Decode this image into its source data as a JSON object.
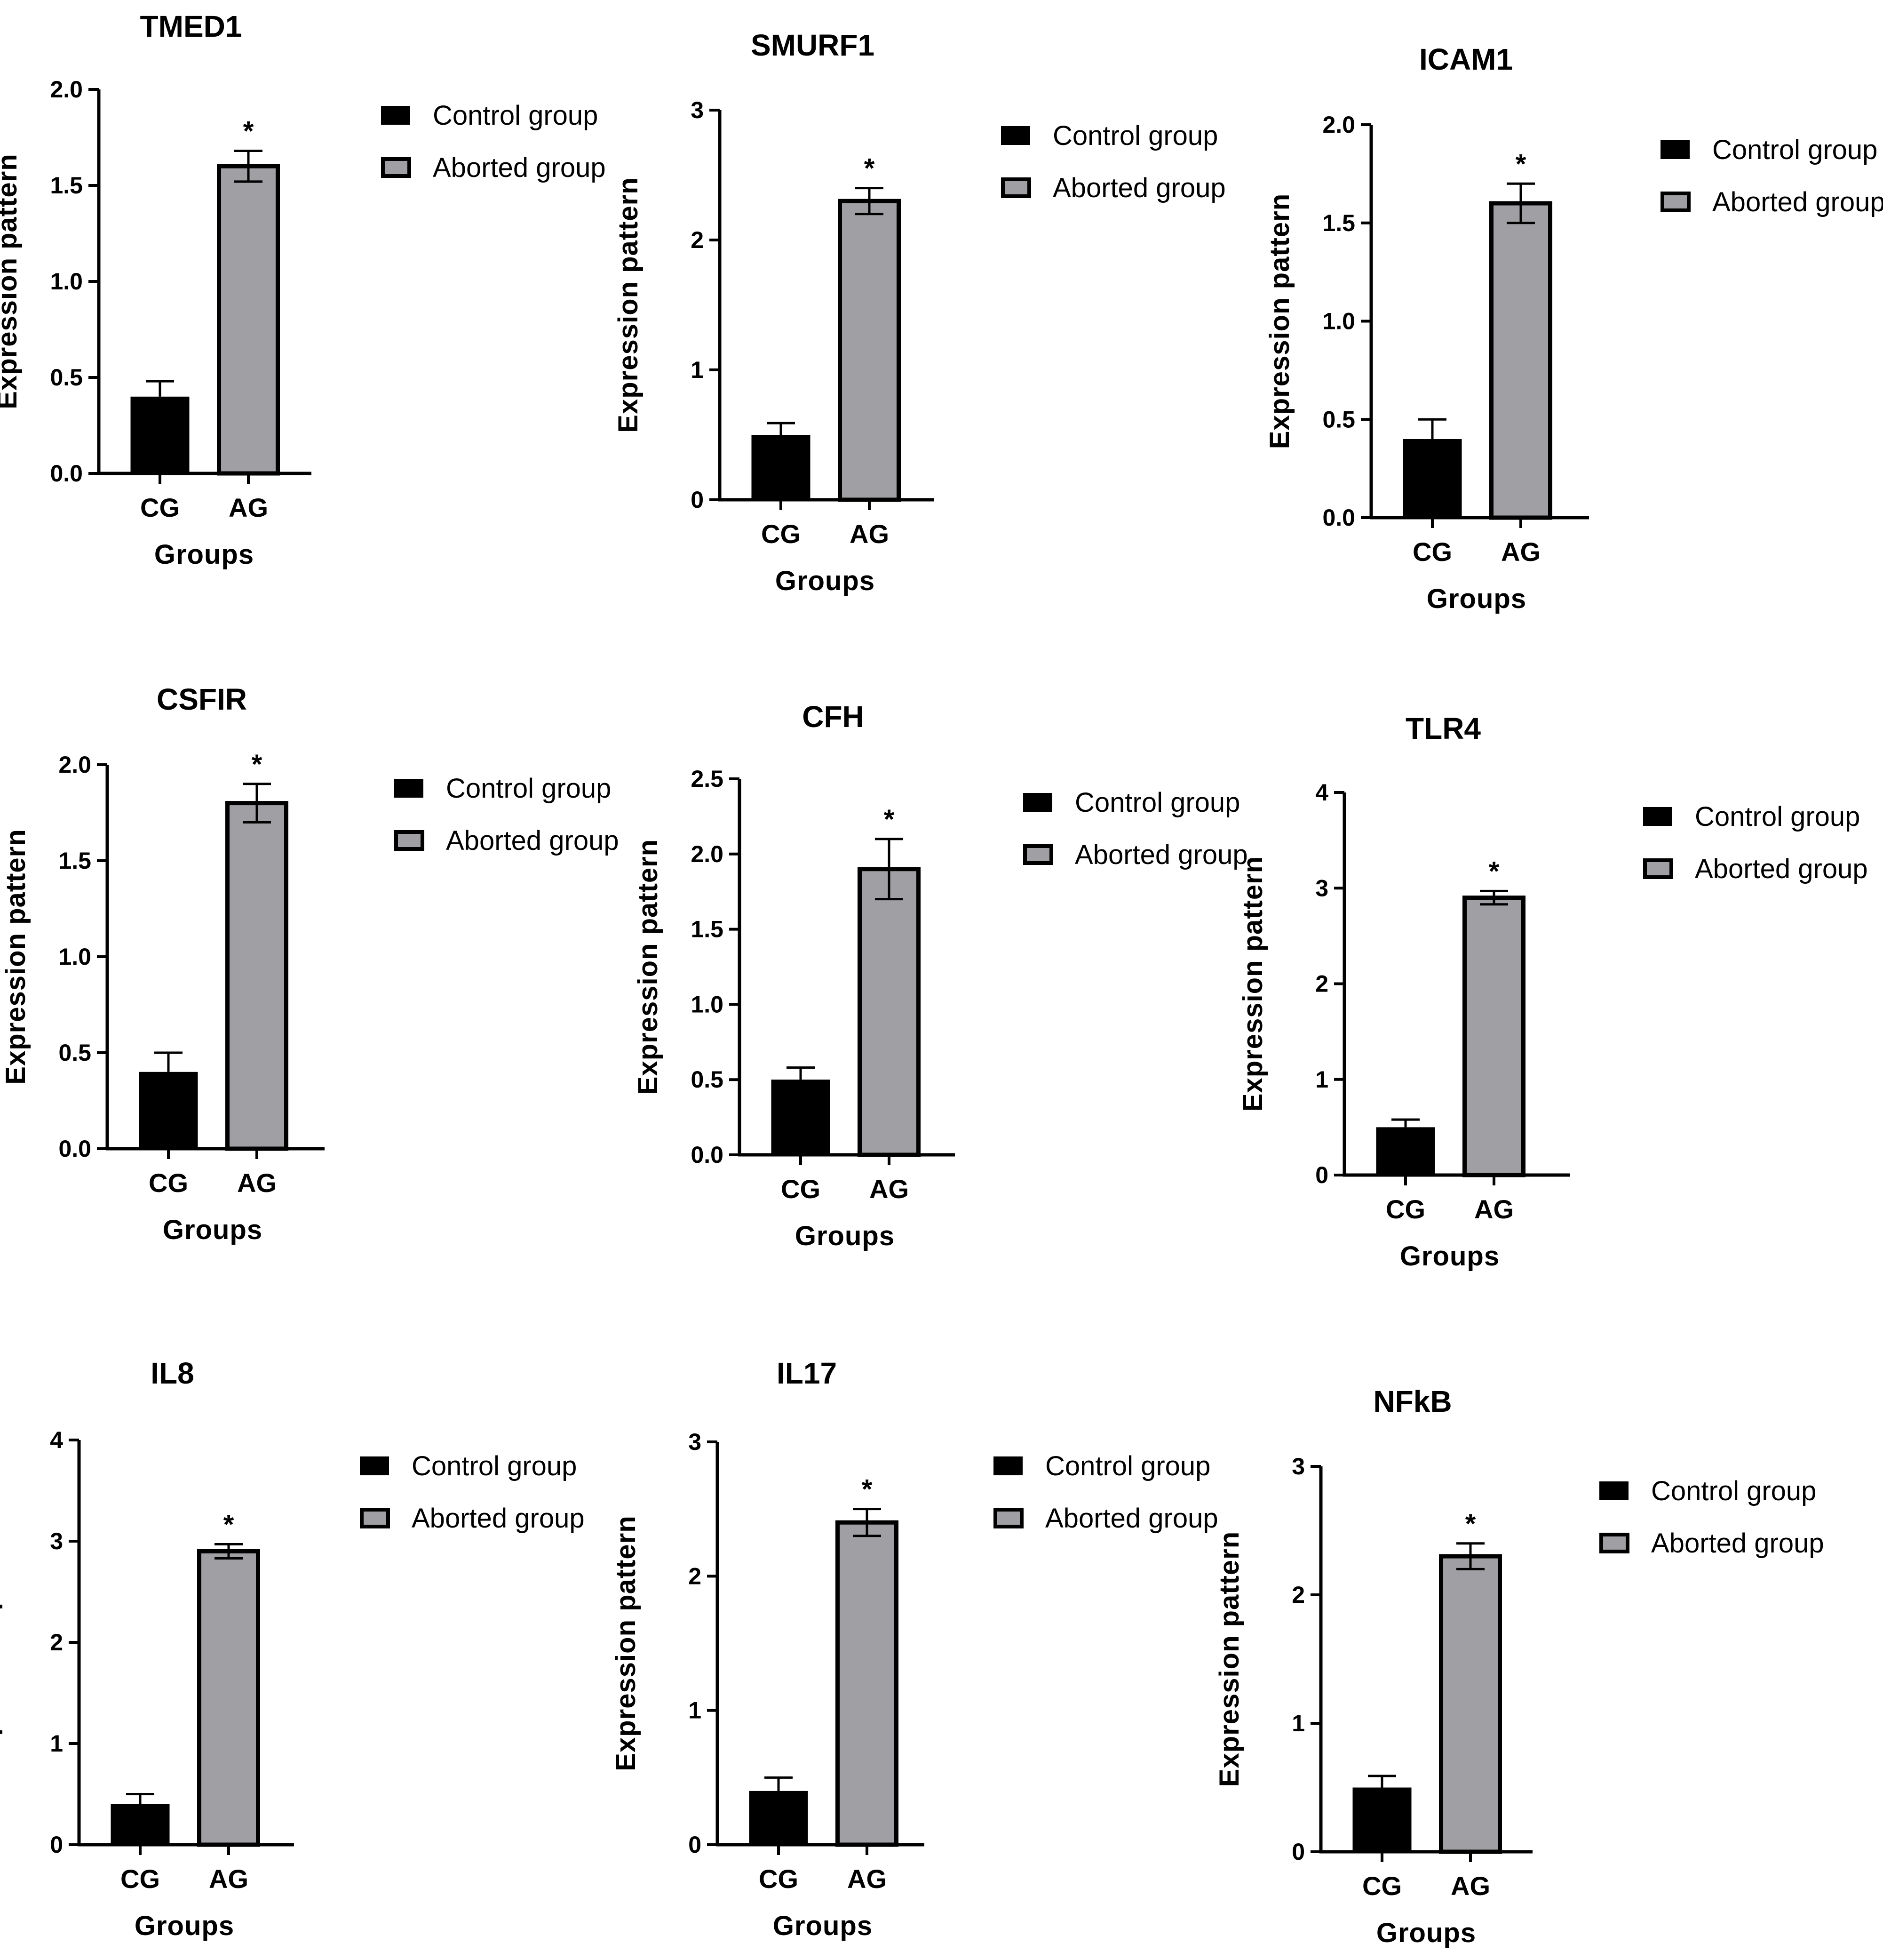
{
  "colors": {
    "control": "#000000",
    "aborted": "#a0a0a4",
    "axis": "#000000"
  },
  "legend": {
    "control_label": "Control group",
    "aborted_label": "Aborted group"
  },
  "chart_data": [
    {
      "type": "bar",
      "title": "TMED1",
      "xlabel": "Groups",
      "ylabel": "Expression pattern",
      "categories": [
        "CG",
        "AG"
      ],
      "values": [
        0.4,
        1.6
      ],
      "errors": [
        0.08,
        0.08
      ],
      "significance": [
        "",
        "*"
      ],
      "yticks": [
        0.0,
        0.5,
        1.0,
        1.5,
        2.0
      ],
      "ytick_labels": [
        "0.0",
        "0.5",
        "1.0",
        "1.5",
        "2.0"
      ],
      "ylim": [
        0,
        2
      ]
    },
    {
      "type": "bar",
      "title": "SMURF1",
      "xlabel": "Groups",
      "ylabel": "Expression pattern",
      "categories": [
        "CG",
        "AG"
      ],
      "values": [
        0.5,
        2.3
      ],
      "errors": [
        0.09,
        0.1
      ],
      "significance": [
        "",
        "*"
      ],
      "yticks": [
        0,
        1,
        2,
        3
      ],
      "ytick_labels": [
        "0",
        "1",
        "2",
        "3"
      ],
      "ylim": [
        0,
        3
      ]
    },
    {
      "type": "bar",
      "title": "ICAM1",
      "xlabel": "Groups",
      "ylabel": "Expression pattern",
      "categories": [
        "CG",
        "AG"
      ],
      "values": [
        0.4,
        1.6
      ],
      "errors": [
        0.1,
        0.1
      ],
      "significance": [
        "",
        "*"
      ],
      "yticks": [
        0.0,
        0.5,
        1.0,
        1.5,
        2.0
      ],
      "ytick_labels": [
        "0.0",
        "0.5",
        "1.0",
        "1.5",
        "2.0"
      ],
      "ylim": [
        0,
        2
      ]
    },
    {
      "type": "bar",
      "title": "CSFIR",
      "xlabel": "Groups",
      "ylabel": "Expression pattern",
      "categories": [
        "CG",
        "AG"
      ],
      "values": [
        0.4,
        1.8
      ],
      "errors": [
        0.1,
        0.1
      ],
      "significance": [
        "",
        "*"
      ],
      "yticks": [
        0.0,
        0.5,
        1.0,
        1.5,
        2.0
      ],
      "ytick_labels": [
        "0.0",
        "0.5",
        "1.0",
        "1.5",
        "2.0"
      ],
      "ylim": [
        0,
        2
      ]
    },
    {
      "type": "bar",
      "title": "CFH",
      "xlabel": "Groups",
      "ylabel": "Expression pattern",
      "categories": [
        "CG",
        "AG"
      ],
      "values": [
        0.5,
        1.9
      ],
      "errors": [
        0.08,
        0.2
      ],
      "significance": [
        "",
        "*"
      ],
      "yticks": [
        0.0,
        0.5,
        1.0,
        1.5,
        2.0,
        2.5
      ],
      "ytick_labels": [
        "0.0",
        "0.5",
        "1.0",
        "1.5",
        "2.0",
        "2.5"
      ],
      "ylim": [
        0,
        2.5
      ]
    },
    {
      "type": "bar",
      "title": "TLR4",
      "xlabel": "Groups",
      "ylabel": "Expression pattern",
      "categories": [
        "CG",
        "AG"
      ],
      "values": [
        0.5,
        2.9
      ],
      "errors": [
        0.08,
        0.07
      ],
      "significance": [
        "",
        "*"
      ],
      "yticks": [
        0,
        1,
        2,
        3,
        4
      ],
      "ytick_labels": [
        "0",
        "1",
        "2",
        "3",
        "4"
      ],
      "ylim": [
        0,
        4
      ]
    },
    {
      "type": "bar",
      "title": "IL8",
      "xlabel": "Groups",
      "ylabel": "Expression pattern",
      "categories": [
        "CG",
        "AG"
      ],
      "values": [
        0.4,
        2.9
      ],
      "errors": [
        0.1,
        0.07
      ],
      "significance": [
        "",
        "*"
      ],
      "yticks": [
        0,
        1,
        2,
        3,
        4
      ],
      "ytick_labels": [
        "0",
        "1",
        "2",
        "3",
        "4"
      ],
      "ylim": [
        0,
        4
      ]
    },
    {
      "type": "bar",
      "title": "IL17",
      "xlabel": "Groups",
      "ylabel": "Expression pattern",
      "categories": [
        "CG",
        "AG"
      ],
      "values": [
        0.4,
        2.4
      ],
      "errors": [
        0.1,
        0.1
      ],
      "significance": [
        "",
        "*"
      ],
      "yticks": [
        0,
        1,
        2,
        3
      ],
      "ytick_labels": [
        "0",
        "1",
        "2",
        "3"
      ],
      "ylim": [
        0,
        3
      ]
    },
    {
      "type": "bar",
      "title": "NFkB",
      "xlabel": "Groups",
      "ylabel": "Expression pattern",
      "categories": [
        "CG",
        "AG"
      ],
      "values": [
        0.5,
        2.3
      ],
      "errors": [
        0.09,
        0.1
      ],
      "significance": [
        "",
        "*"
      ],
      "yticks": [
        0,
        1,
        2,
        3
      ],
      "ytick_labels": [
        "0",
        "1",
        "2",
        "3"
      ],
      "ylim": [
        0,
        3
      ]
    }
  ]
}
